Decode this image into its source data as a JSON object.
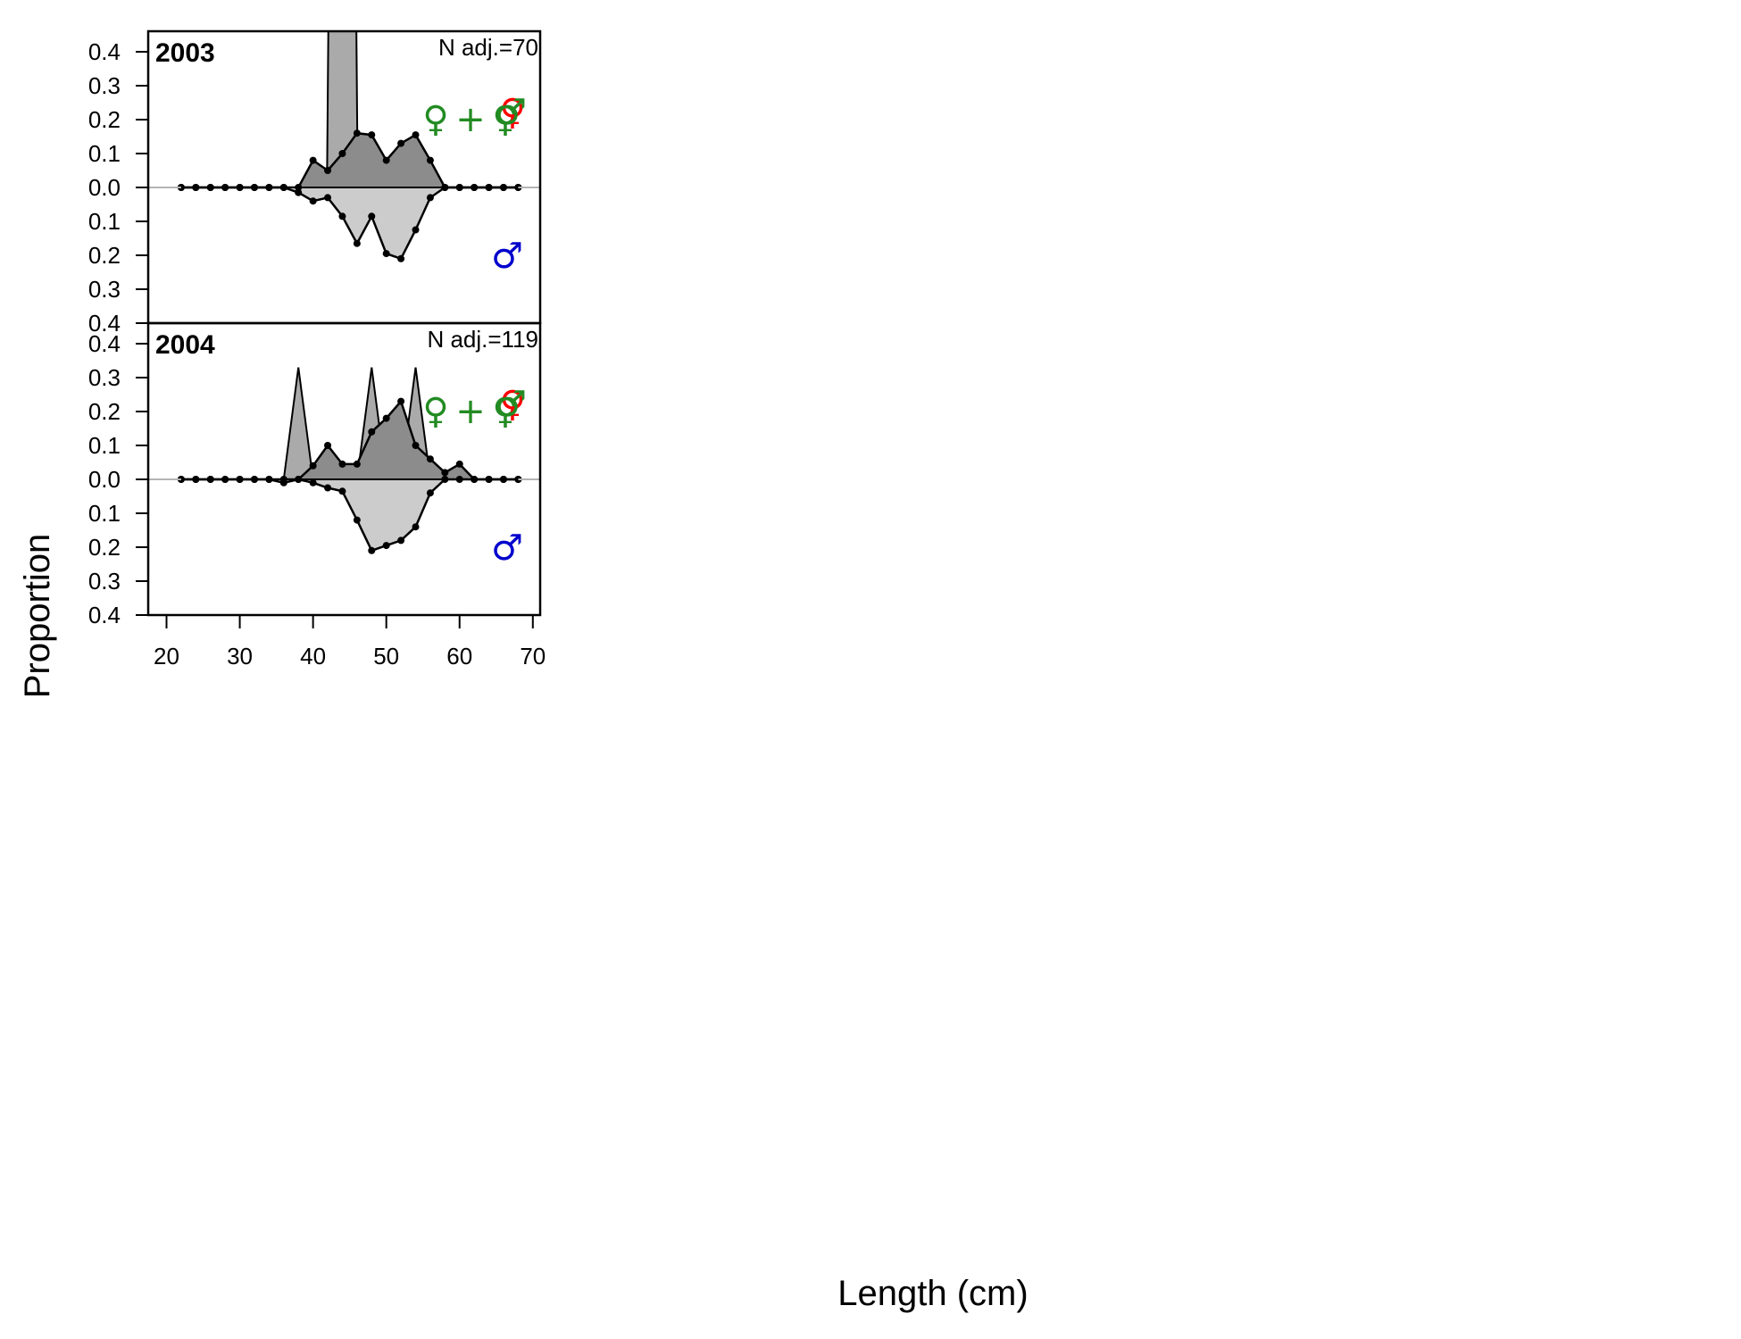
{
  "axis_labels": {
    "x": "Length (cm)",
    "y": "Proportion"
  },
  "legend_symbols": {
    "female": "♀",
    "plus": "+",
    "male": "♂",
    "female_color": "#228B22",
    "male_color": "#0000CD",
    "unsexed_color": "#FF0000"
  },
  "chart_data": {
    "type": "area",
    "x_ticks": [
      20,
      30,
      40,
      50,
      60,
      70
    ],
    "y_ticks": [
      "0.4",
      "0.3",
      "0.2",
      "0.1",
      "0.0",
      "0.1",
      "0.2",
      "0.3",
      "0.4"
    ],
    "xlim": [
      17.5,
      71
    ],
    "ylim_upper": [
      0,
      0.4
    ],
    "ylim_lower": [
      0,
      0.4
    ],
    "panels": [
      {
        "year": "2003",
        "n_label": "N adj.=70",
        "observed_female_spike": {
          "x": [
            22,
            24,
            26,
            28,
            30,
            32,
            34,
            36,
            38,
            40,
            41.9,
            42.1,
            44,
            45.9,
            46.1,
            48,
            50,
            52,
            54,
            56,
            58,
            60,
            62,
            64,
            66,
            68
          ],
          "y": [
            0,
            0,
            0,
            0,
            0,
            0,
            0,
            0,
            0,
            0,
            0,
            0.5,
            0.5,
            0.5,
            0,
            0,
            0,
            0,
            0,
            0,
            0,
            0,
            0,
            0,
            0,
            0
          ]
        },
        "female": {
          "x": [
            22,
            24,
            26,
            28,
            30,
            32,
            34,
            36,
            38,
            40,
            42,
            44,
            46,
            48,
            50,
            52,
            54,
            56,
            58,
            60,
            62,
            64,
            66,
            68
          ],
          "y": [
            0,
            0,
            0,
            0,
            0,
            0,
            0,
            0,
            0,
            0.08,
            0.05,
            0.1,
            0.16,
            0.155,
            0.08,
            0.13,
            0.155,
            0.08,
            0,
            0,
            0,
            0,
            0,
            0
          ]
        },
        "male": {
          "x": [
            22,
            24,
            26,
            28,
            30,
            32,
            34,
            36,
            38,
            40,
            42,
            44,
            46,
            48,
            50,
            52,
            54,
            56,
            58,
            60,
            62,
            64,
            66,
            68
          ],
          "y": [
            0,
            0,
            0,
            0,
            0,
            0,
            0,
            0,
            0.015,
            0.04,
            0.03,
            0.085,
            0.165,
            0.085,
            0.195,
            0.21,
            0.125,
            0.03,
            0,
            0,
            0,
            0,
            0,
            0
          ]
        }
      },
      {
        "year": "2004",
        "n_label": "N adj.=119",
        "observed_female_spike": {
          "x": [
            22,
            24,
            26,
            28,
            30,
            32,
            34,
            36,
            38,
            40,
            42,
            44,
            46,
            48,
            50,
            52,
            54,
            56,
            58,
            60,
            62,
            64,
            66,
            68
          ],
          "y": [
            0,
            0,
            0,
            0,
            0,
            0,
            0,
            0,
            0.33,
            0,
            0,
            0,
            0,
            0.33,
            0,
            0,
            0.33,
            0,
            0,
            0,
            0,
            0,
            0,
            0
          ]
        },
        "female": {
          "x": [
            22,
            24,
            26,
            28,
            30,
            32,
            34,
            36,
            38,
            40,
            42,
            44,
            46,
            48,
            50,
            52,
            54,
            56,
            58,
            60,
            62,
            64,
            66,
            68
          ],
          "y": [
            0,
            0,
            0,
            0,
            0,
            0,
            0,
            0,
            0,
            0.04,
            0.1,
            0.045,
            0.045,
            0.14,
            0.18,
            0.23,
            0.1,
            0.06,
            0.02,
            0.045,
            0,
            0,
            0,
            0
          ]
        },
        "male": {
          "x": [
            22,
            24,
            26,
            28,
            30,
            32,
            34,
            36,
            38,
            40,
            42,
            44,
            46,
            48,
            50,
            52,
            54,
            56,
            58,
            60,
            62,
            64,
            66,
            68
          ],
          "y": [
            0,
            0,
            0,
            0,
            0,
            0,
            0,
            0.01,
            0,
            0.01,
            0.025,
            0.035,
            0.12,
            0.21,
            0.195,
            0.18,
            0.14,
            0.04,
            0,
            0,
            0,
            0,
            0,
            0
          ]
        }
      }
    ]
  }
}
